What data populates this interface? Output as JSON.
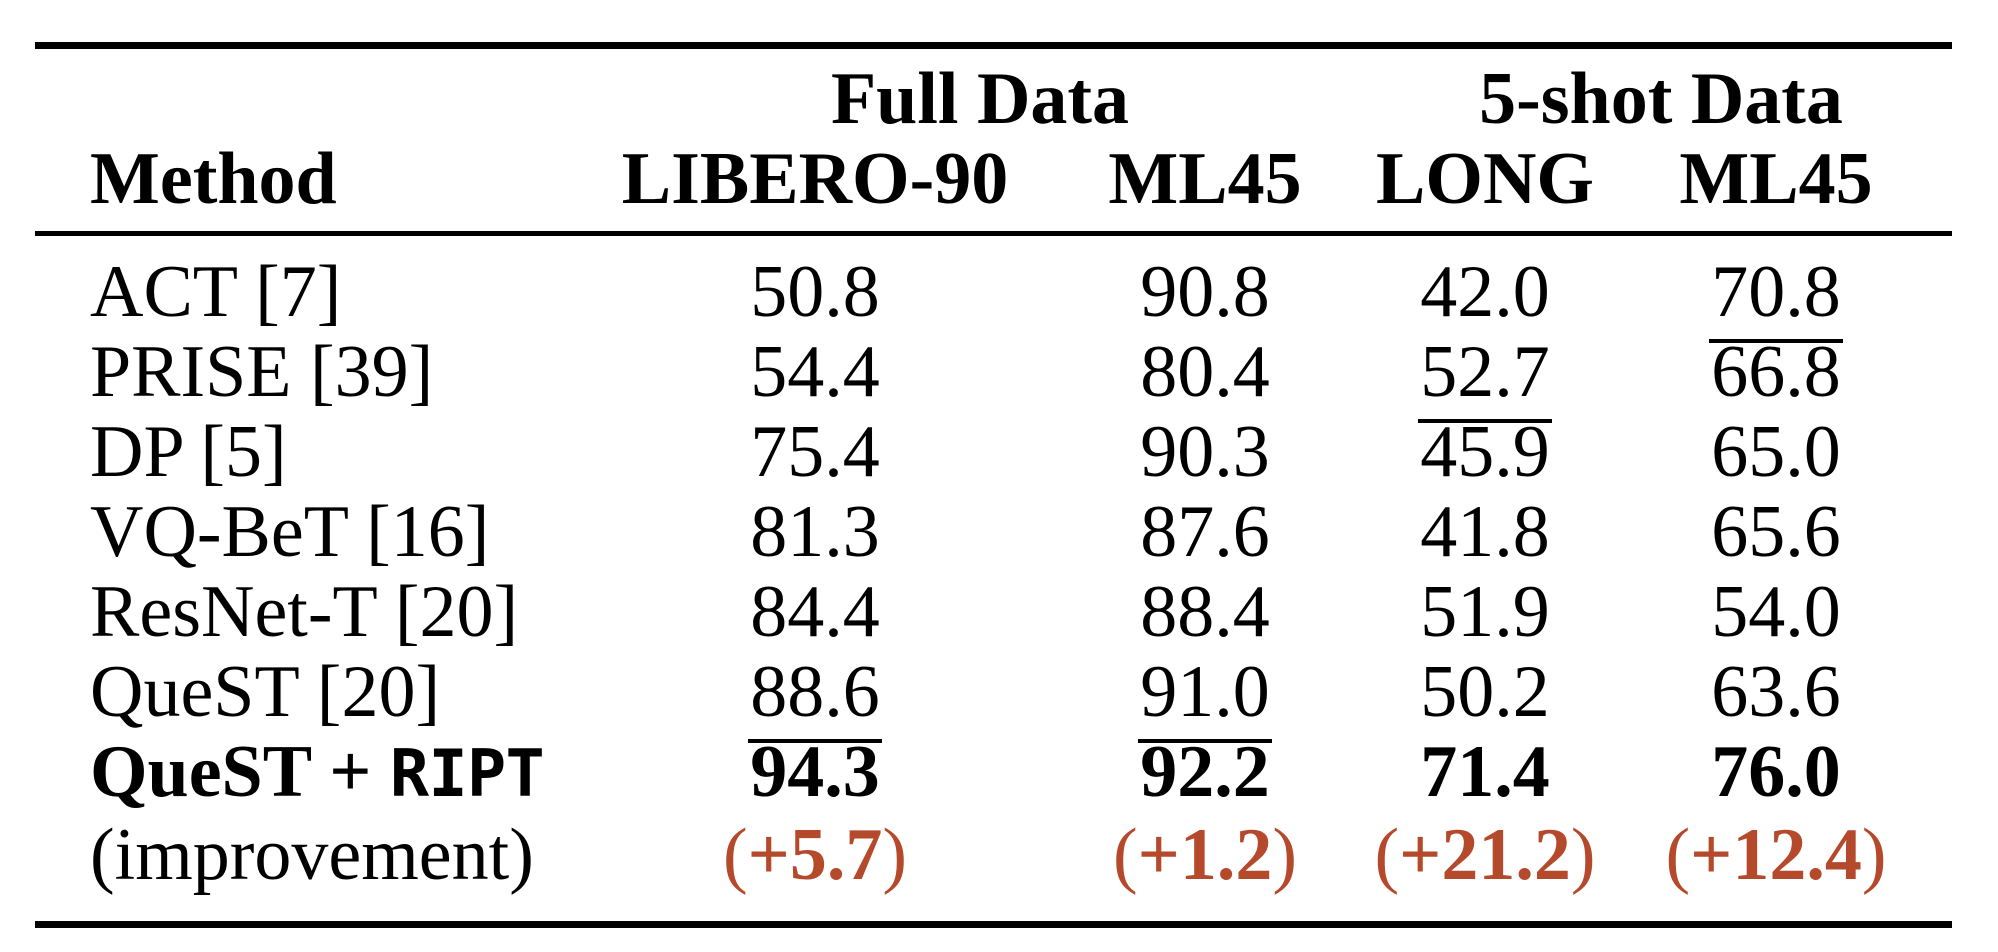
{
  "page": {
    "background_color": "#ffffff",
    "text_color": "#000000",
    "accent_color": "#b5492b"
  },
  "table": {
    "group_headers": [
      {
        "label": "Full Data",
        "span": 2
      },
      {
        "label": "5-shot Data",
        "span": 2
      }
    ],
    "columns": [
      "Method",
      "LIBERO-90",
      "ML45",
      "LONG",
      "ML45"
    ],
    "rows": [
      {
        "method": "ACT [7]",
        "values": [
          "50.8",
          "90.8",
          "42.0",
          "70.8"
        ],
        "underline": [
          false,
          false,
          false,
          true
        ],
        "bold": false
      },
      {
        "method": "PRISE [39]",
        "values": [
          "54.4",
          "80.4",
          "52.7",
          "66.8"
        ],
        "underline": [
          false,
          false,
          true,
          false
        ],
        "bold": false
      },
      {
        "method": "DP [5]",
        "values": [
          "75.4",
          "90.3",
          "45.9",
          "65.0"
        ],
        "underline": [
          false,
          false,
          false,
          false
        ],
        "bold": false
      },
      {
        "method": "VQ-BeT [16]",
        "values": [
          "81.3",
          "87.6",
          "41.8",
          "65.6"
        ],
        "underline": [
          false,
          false,
          false,
          false
        ],
        "bold": false
      },
      {
        "method": "ResNet-T [20]",
        "values": [
          "84.4",
          "88.4",
          "51.9",
          "54.0"
        ],
        "underline": [
          false,
          false,
          false,
          false
        ],
        "bold": false
      },
      {
        "method": "QueST [20]",
        "values": [
          "88.6",
          "91.0",
          "50.2",
          "63.6"
        ],
        "underline": [
          true,
          true,
          false,
          false
        ],
        "bold": false
      },
      {
        "method_serif": "QueST + ",
        "method_mono": "RIPT",
        "values": [
          "94.3",
          "92.2",
          "71.4",
          "76.0"
        ],
        "underline": [
          false,
          false,
          false,
          false
        ],
        "bold": true
      },
      {
        "method": "(improvement)",
        "open": "(",
        "close": ")",
        "values": [
          "+5.7",
          "+1.2",
          "+21.2",
          "+12.4"
        ],
        "color": "#b5492b",
        "bold_numbers": true
      }
    ]
  }
}
